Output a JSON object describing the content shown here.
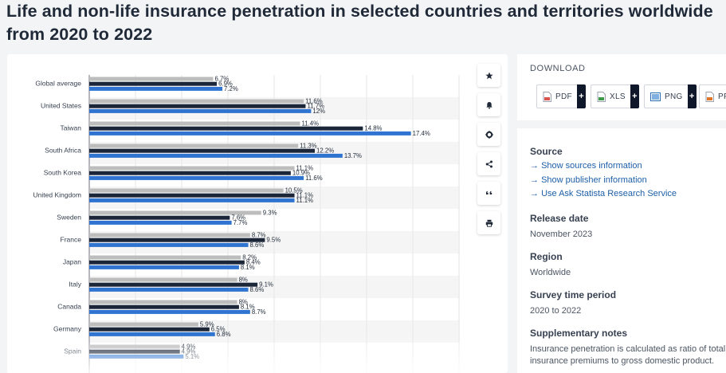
{
  "page": {
    "title": "Life and non-life insurance penetration in selected countries and territories worldwide from 2020 to 2022"
  },
  "toolbar": {
    "icons": [
      "star-icon",
      "bell-icon",
      "gear-icon",
      "share-icon",
      "quote-icon",
      "print-icon"
    ]
  },
  "download": {
    "title": "DOWNLOAD",
    "buttons": [
      {
        "label": "PDF",
        "icon": "pdf-file-icon",
        "color": "#d9534f"
      },
      {
        "label": "XLS",
        "icon": "xls-file-icon",
        "color": "#3c9a48"
      },
      {
        "label": "PNG",
        "icon": "png-file-icon",
        "color": "#2f6fb3"
      },
      {
        "label": "PPT",
        "icon": "ppt-file-icon",
        "color": "#e0762a"
      }
    ],
    "plus_label": "+"
  },
  "info": {
    "source_heading": "Source",
    "links": [
      "Show sources information",
      "Show publisher information",
      "Use Ask Statista Research Service"
    ],
    "release_heading": "Release date",
    "release_value": "November 2023",
    "region_heading": "Region",
    "region_value": "Worldwide",
    "survey_heading": "Survey time period",
    "survey_value": "2020 to 2022",
    "notes_heading": "Supplementary notes",
    "notes_line1": "Insurance penetration is calculated as ratio of total",
    "notes_line2": "insurance premiums to gross domestic product."
  },
  "colors": {
    "series_2020": "#bdbdbd",
    "series_2021": "#1b2638",
    "series_2022": "#2f74d0",
    "link": "#1d5fa8"
  },
  "chart_data": {
    "type": "bar",
    "orientation": "horizontal",
    "categories": [
      "Global average",
      "United States",
      "Taiwan",
      "South Africa",
      "South Korea",
      "United Kingdom",
      "Sweden",
      "France",
      "Japan",
      "Italy",
      "Canada",
      "Germany",
      "Spain"
    ],
    "series": [
      {
        "values": [
          6.7,
          11.6,
          11.4,
          11.3,
          11.1,
          10.5,
          9.3,
          8.7,
          8.2,
          8,
          8,
          5.9,
          4.9
        ]
      },
      {
        "values": [
          6.9,
          11.7,
          14.8,
          12.2,
          10.9,
          11.1,
          7.6,
          9.5,
          8.4,
          9.1,
          8.1,
          6.5,
          4.9
        ]
      },
      {
        "values": [
          7.2,
          12,
          17.4,
          13.7,
          11.6,
          11.1,
          7.7,
          8.6,
          8.1,
          8.6,
          8.7,
          6.8,
          5.1
        ]
      }
    ],
    "value_suffix": "%",
    "xlim": [
      0,
      20
    ],
    "grid": true,
    "legend": "none"
  }
}
